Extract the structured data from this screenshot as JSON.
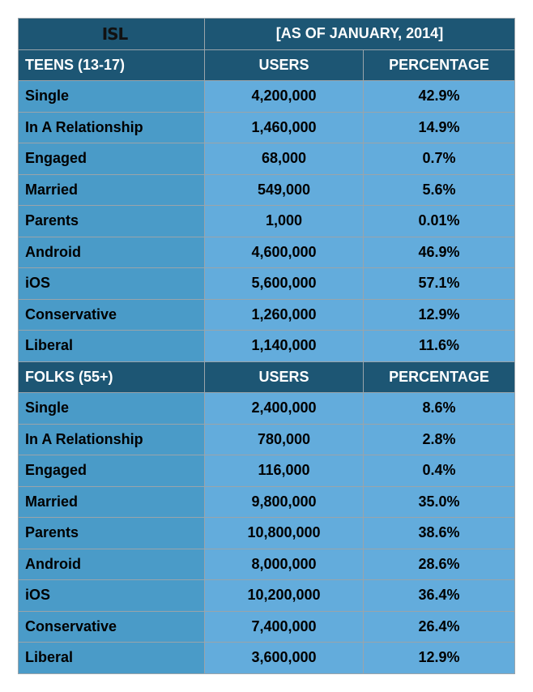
{
  "logo": "ISL",
  "date_header": "[AS OF JANUARY, 2014]",
  "sections": [
    {
      "title": "TEENS (13-17)",
      "col_users": "USERS",
      "col_pct": "PERCENTAGE",
      "rows": [
        [
          "Single",
          "4,200,000",
          "42.9%"
        ],
        [
          "In A Relationship",
          "1,460,000",
          "14.9%"
        ],
        [
          "Engaged",
          "68,000",
          "0.7%"
        ],
        [
          "Married",
          "549,000",
          "5.6%"
        ],
        [
          "Parents",
          "1,000",
          "0.01%"
        ],
        [
          "Android",
          "4,600,000",
          "46.9%"
        ],
        [
          "iOS",
          "5,600,000",
          "57.1%"
        ],
        [
          "Conservative",
          "1,260,000",
          "12.9%"
        ],
        [
          "Liberal",
          "1,140,000",
          "11.6%"
        ]
      ]
    },
    {
      "title": "FOLKS (55+)",
      "col_users": "USERS",
      "col_pct": "PERCENTAGE",
      "rows": [
        [
          "Single",
          "2,400,000",
          "8.6%"
        ],
        [
          "In A Relationship",
          "780,000",
          "2.8%"
        ],
        [
          "Engaged",
          "116,000",
          "0.4%"
        ],
        [
          "Married",
          "9,800,000",
          "35.0%"
        ],
        [
          "Parents",
          "10,800,000",
          "38.6%"
        ],
        [
          "Android",
          "8,000,000",
          "28.6%"
        ],
        [
          "iOS",
          "10,200,000",
          "36.4%"
        ],
        [
          "Conservative",
          "7,400,000",
          "26.4%"
        ],
        [
          "Liberal",
          "3,600,000",
          "12.9%"
        ]
      ]
    }
  ]
}
